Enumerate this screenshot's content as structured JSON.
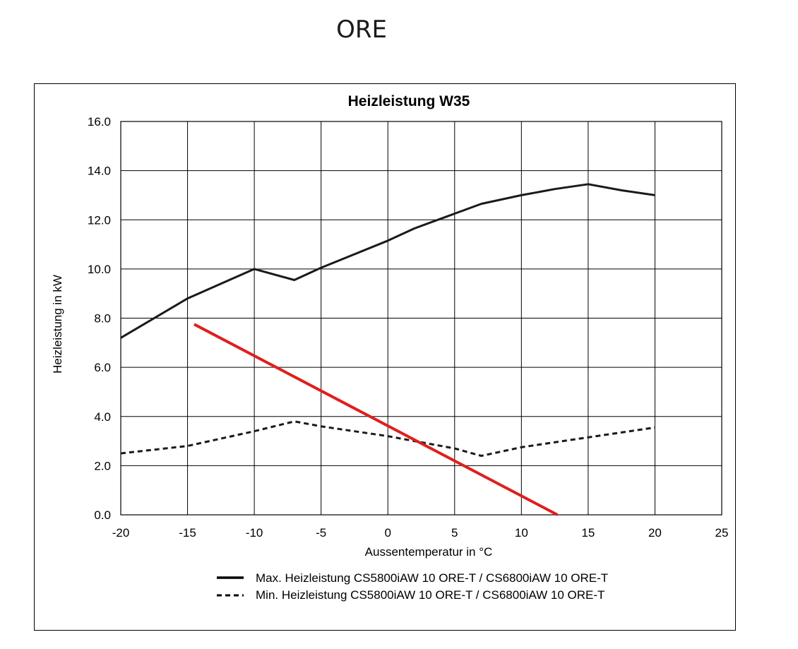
{
  "page": {
    "title": "ORE"
  },
  "chart_data": {
    "type": "line",
    "title": "Heizleistung W35",
    "xlabel": "Aussentemperatur in °C",
    "ylabel": "Heizleistung in kW",
    "xlim": [
      -20,
      25
    ],
    "ylim": [
      0,
      16
    ],
    "xticks": [
      -20,
      -15,
      -10,
      -5,
      0,
      5,
      10,
      15,
      20,
      25
    ],
    "yticks": [
      0,
      2,
      4,
      6,
      8,
      10,
      12,
      14,
      16
    ],
    "xtick_labels": [
      "-20",
      "-15",
      "-10",
      "-5",
      "0",
      "5",
      "10",
      "15",
      "20",
      "25"
    ],
    "ytick_labels": [
      "0.0",
      "2.0",
      "4.0",
      "6.0",
      "8.0",
      "10.0",
      "12.0",
      "14.0",
      "16.0"
    ],
    "grid": true,
    "series": [
      {
        "name": "Max. Heizleistung CS5800iAW 10 ORE-T / CS6800iAW 10 ORE-T",
        "style": "solid",
        "color": "#1a1a1a",
        "x": [
          -20,
          -15,
          -12.5,
          -10,
          -7,
          -5,
          -2.5,
          0,
          2,
          5,
          7,
          10,
          12.5,
          15,
          17.5,
          20
        ],
        "y": [
          7.2,
          8.8,
          9.4,
          10.0,
          9.55,
          10.05,
          10.6,
          11.15,
          11.65,
          12.25,
          12.65,
          13.0,
          13.25,
          13.45,
          13.2,
          13.0
        ]
      },
      {
        "name": "Min. Heizleistung CS5800iAW 10 ORE-T / CS6800iAW 10 ORE-T",
        "style": "dashed",
        "color": "#1a1a1a",
        "x": [
          -20,
          -15,
          -10,
          -7,
          -5,
          0,
          2,
          5,
          7,
          10,
          15,
          20
        ],
        "y": [
          2.5,
          2.8,
          3.4,
          3.8,
          3.6,
          3.2,
          3.0,
          2.7,
          2.4,
          2.75,
          3.15,
          3.55
        ]
      },
      {
        "name": "annotation-line",
        "style": "solid",
        "color": "#e01e1e",
        "x": [
          -14.5,
          12.7
        ],
        "y": [
          7.75,
          0.0
        ]
      }
    ],
    "legend": {
      "placement": "bottom",
      "entries": [
        "Max. Heizleistung CS5800iAW 10 ORE-T / CS6800iAW 10 ORE-T",
        "Min. Heizleistung CS5800iAW 10 ORE-T / CS6800iAW 10 ORE-T"
      ]
    }
  }
}
